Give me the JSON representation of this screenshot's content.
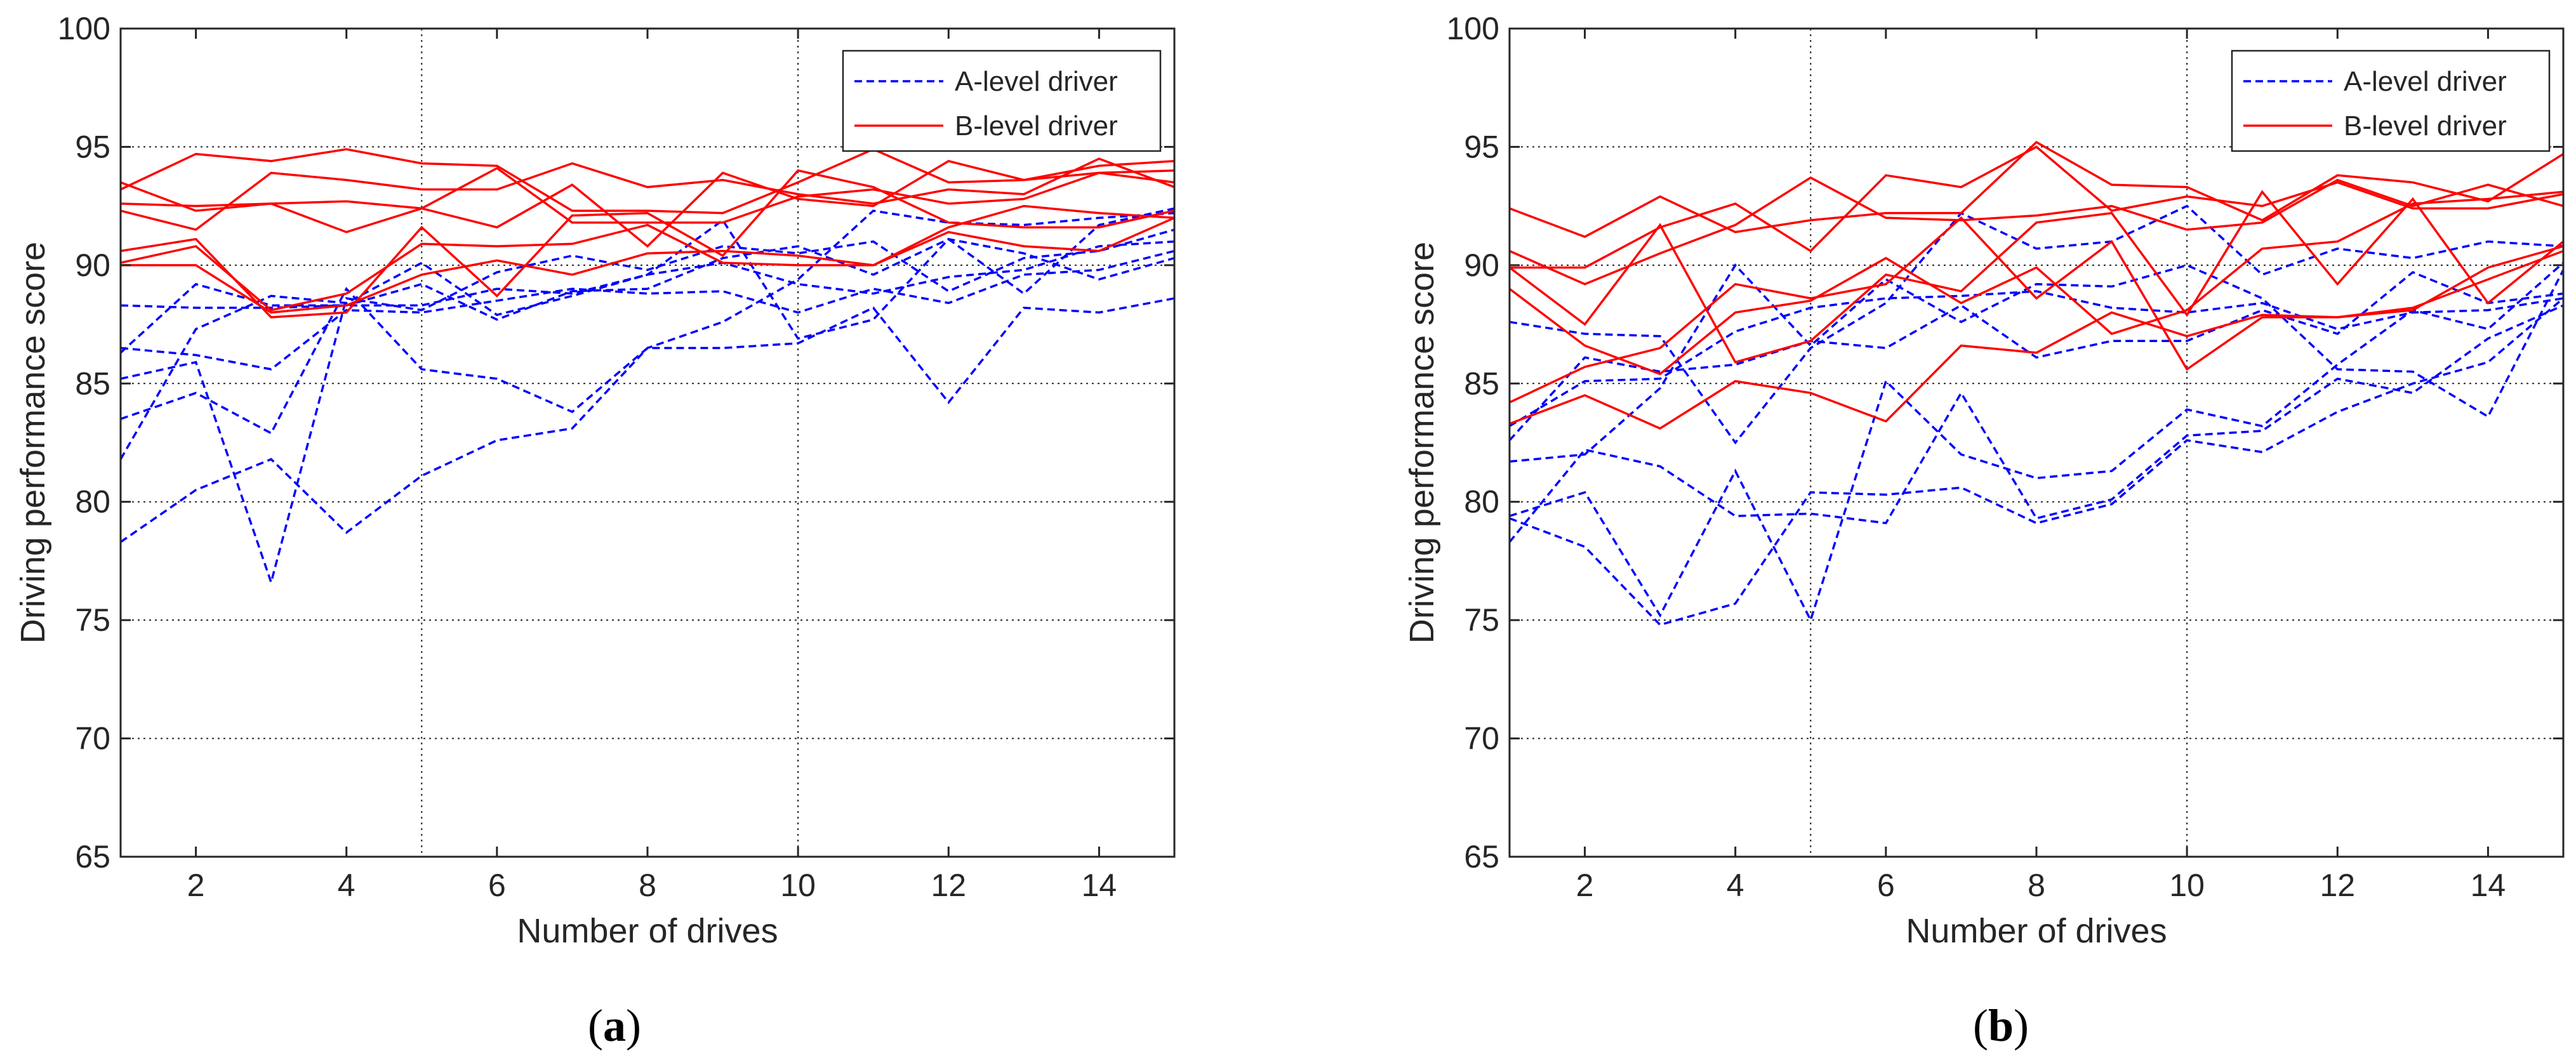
{
  "chart_data": [
    {
      "type": "line",
      "panel_label": "a",
      "xlabel": "Number of drives",
      "ylabel": "Driving performance score",
      "xlim": [
        1,
        15
      ],
      "ylim": [
        65,
        100
      ],
      "xticks": [
        2,
        4,
        6,
        8,
        10,
        12,
        14
      ],
      "yticks": [
        65,
        70,
        75,
        80,
        85,
        90,
        95,
        100
      ],
      "grid_x": [
        5,
        10
      ],
      "grid": true,
      "legend": {
        "position": "top-right",
        "entries": [
          "A-level driver",
          "B-level driver"
        ]
      },
      "x": [
        1,
        2,
        3,
        4,
        5,
        6,
        7,
        8,
        9,
        10,
        11,
        12,
        13,
        14,
        15
      ],
      "series": [
        {
          "name": "A-level driver",
          "group": "A",
          "values": [
            88.3,
            88.2,
            88.2,
            88.3,
            88.3,
            89.0,
            88.8,
            89.6,
            90.1,
            89.2,
            88.8,
            89.5,
            89.8,
            90.8,
            91.0
          ]
        },
        {
          "name": "A-level driver",
          "group": "A",
          "values": [
            86.5,
            86.2,
            85.6,
            88.1,
            88.0,
            88.5,
            89.0,
            88.8,
            88.9,
            88.0,
            89.0,
            88.4,
            89.6,
            89.8,
            90.6
          ]
        },
        {
          "name": "A-level driver",
          "group": "A",
          "values": [
            86.3,
            89.2,
            88.3,
            88.3,
            89.2,
            87.7,
            88.9,
            89.0,
            90.3,
            90.8,
            89.6,
            91.1,
            90.5,
            89.4,
            90.3
          ]
        },
        {
          "name": "A-level driver",
          "group": "A",
          "values": [
            83.5,
            84.6,
            82.9,
            89.0,
            85.6,
            85.2,
            83.8,
            86.5,
            86.5,
            86.7,
            88.2,
            84.2,
            88.2,
            88.0,
            88.6
          ]
        },
        {
          "name": "A-level driver",
          "group": "A",
          "values": [
            81.8,
            87.3,
            88.7,
            88.4,
            90.1,
            87.9,
            88.7,
            89.6,
            91.9,
            86.9,
            87.7,
            91.1,
            88.8,
            91.7,
            92.4
          ]
        },
        {
          "name": "A-level driver",
          "group": "A",
          "values": [
            78.3,
            80.5,
            81.8,
            78.7,
            81.1,
            82.6,
            83.1,
            86.5,
            87.6,
            89.4,
            92.3,
            91.8,
            91.7,
            92.0,
            92.2
          ]
        },
        {
          "name": "A-level driver",
          "group": "A",
          "values": [
            85.2,
            85.9,
            76.6,
            88.6,
            88.1,
            89.7,
            90.4,
            89.8,
            90.8,
            90.5,
            91.0,
            88.9,
            90.3,
            90.6,
            91.5
          ]
        },
        {
          "name": "B-level driver",
          "group": "B",
          "values": [
            93.2,
            94.7,
            94.4,
            94.9,
            94.3,
            94.2,
            92.3,
            92.3,
            92.2,
            93.5,
            94.9,
            93.5,
            93.6,
            93.9,
            94.0
          ]
        },
        {
          "name": "B-level driver",
          "group": "B",
          "values": [
            92.3,
            91.5,
            93.9,
            93.6,
            93.2,
            93.2,
            94.3,
            93.3,
            93.6,
            93.0,
            92.6,
            93.2,
            93.0,
            94.5,
            93.3
          ]
        },
        {
          "name": "B-level driver",
          "group": "B",
          "values": [
            93.5,
            92.3,
            92.6,
            92.7,
            92.4,
            94.1,
            91.8,
            91.8,
            91.8,
            92.9,
            93.2,
            92.6,
            92.8,
            93.9,
            93.5
          ]
        },
        {
          "name": "B-level driver",
          "group": "B",
          "values": [
            92.6,
            92.5,
            92.6,
            91.4,
            92.4,
            91.6,
            93.4,
            90.8,
            93.9,
            92.8,
            92.5,
            94.4,
            93.6,
            94.2,
            94.4
          ]
        },
        {
          "name": "B-level driver",
          "group": "B",
          "values": [
            90.6,
            91.1,
            87.8,
            88.0,
            91.6,
            88.7,
            92.1,
            92.2,
            90.4,
            94.0,
            93.3,
            91.8,
            91.6,
            91.6,
            92.3
          ]
        },
        {
          "name": "B-level driver",
          "group": "B",
          "values": [
            90.1,
            90.8,
            88.1,
            88.8,
            90.9,
            90.8,
            90.9,
            91.7,
            90.1,
            90.0,
            90.0,
            91.4,
            90.8,
            90.6,
            92.0
          ]
        },
        {
          "name": "B-level driver",
          "group": "B",
          "values": [
            90.0,
            90.0,
            88.0,
            88.3,
            89.6,
            90.2,
            89.6,
            90.5,
            90.6,
            90.4,
            90.0,
            91.6,
            92.5,
            92.2,
            92.0
          ]
        }
      ]
    },
    {
      "type": "line",
      "panel_label": "b",
      "xlabel": "Number of drives",
      "ylabel": "Driving performance score",
      "xlim": [
        1,
        15
      ],
      "ylim": [
        65,
        100
      ],
      "xticks": [
        2,
        4,
        6,
        8,
        10,
        12,
        14
      ],
      "yticks": [
        65,
        70,
        75,
        80,
        85,
        90,
        95,
        100
      ],
      "grid_x": [
        5,
        10
      ],
      "grid": true,
      "legend": {
        "position": "top-right",
        "entries": [
          "A-level driver",
          "B-level driver"
        ]
      },
      "x": [
        1,
        2,
        3,
        4,
        5,
        6,
        7,
        8,
        9,
        10,
        11,
        12,
        13,
        14,
        15
      ],
      "series": [
        {
          "name": "A-level driver",
          "group": "A",
          "values": [
            87.6,
            87.1,
            87.0,
            82.5,
            86.5,
            88.4,
            92.2,
            90.7,
            91.0,
            92.5,
            89.6,
            90.7,
            90.3,
            91.0,
            90.8
          ]
        },
        {
          "name": "A-level driver",
          "group": "A",
          "values": [
            82.6,
            86.1,
            85.5,
            85.8,
            86.8,
            86.5,
            88.3,
            86.1,
            86.8,
            86.8,
            88.1,
            87.1,
            89.7,
            88.4,
            88.8
          ]
        },
        {
          "name": "A-level driver",
          "group": "A",
          "values": [
            81.7,
            82.0,
            84.8,
            90.0,
            86.6,
            89.4,
            87.6,
            89.2,
            89.1,
            90.0,
            88.6,
            85.6,
            85.5,
            83.6,
            89.8
          ]
        },
        {
          "name": "A-level driver",
          "group": "A",
          "values": [
            79.4,
            80.4,
            75.2,
            81.3,
            75.0,
            85.1,
            82.0,
            81.0,
            81.3,
            83.9,
            83.2,
            85.8,
            88.1,
            87.3,
            90.1
          ]
        },
        {
          "name": "A-level driver",
          "group": "A",
          "values": [
            78.3,
            82.2,
            81.5,
            79.4,
            79.5,
            79.1,
            84.6,
            79.3,
            80.1,
            82.8,
            83.0,
            85.2,
            84.6,
            86.9,
            88.3
          ]
        },
        {
          "name": "A-level driver",
          "group": "A",
          "values": [
            79.3,
            78.1,
            74.8,
            75.7,
            80.4,
            80.3,
            80.6,
            79.1,
            79.9,
            82.6,
            82.1,
            83.8,
            85.0,
            85.9,
            88.6
          ]
        },
        {
          "name": "A-level driver",
          "group": "A",
          "values": [
            83.2,
            85.1,
            85.2,
            87.2,
            88.2,
            88.6,
            88.7,
            88.9,
            88.2,
            88.0,
            88.4,
            87.3,
            88.0,
            88.1,
            88.6
          ]
        },
        {
          "name": "B-level driver",
          "group": "B",
          "values": [
            92.4,
            91.2,
            92.9,
            91.4,
            91.9,
            92.2,
            92.2,
            95.2,
            93.4,
            93.3,
            91.9,
            93.8,
            93.5,
            92.7,
            94.7
          ]
        },
        {
          "name": "B-level driver",
          "group": "B",
          "values": [
            89.9,
            89.9,
            91.6,
            92.6,
            90.6,
            93.8,
            93.3,
            95.0,
            92.3,
            92.9,
            92.5,
            93.5,
            92.4,
            92.4,
            93.0
          ]
        },
        {
          "name": "B-level driver",
          "group": "B",
          "values": [
            90.6,
            89.2,
            90.5,
            91.7,
            93.7,
            92.0,
            91.9,
            92.1,
            92.5,
            91.5,
            91.8,
            93.6,
            92.5,
            93.4,
            92.5
          ]
        },
        {
          "name": "B-level driver",
          "group": "B",
          "values": [
            89.9,
            87.5,
            91.7,
            85.9,
            86.8,
            89.6,
            88.9,
            91.8,
            92.2,
            87.9,
            93.1,
            89.2,
            92.8,
            88.4,
            91.0
          ]
        },
        {
          "name": "B-level driver",
          "group": "B",
          "values": [
            89.0,
            86.6,
            85.4,
            88.0,
            88.5,
            90.3,
            88.4,
            89.9,
            87.1,
            88.1,
            90.7,
            91.0,
            92.6,
            92.8,
            93.1
          ]
        },
        {
          "name": "B-level driver",
          "group": "B",
          "values": [
            84.2,
            85.7,
            86.5,
            89.2,
            88.6,
            89.2,
            92.0,
            88.6,
            91.0,
            85.6,
            87.8,
            87.8,
            88.1,
            89.9,
            90.8
          ]
        },
        {
          "name": "B-level driver",
          "group": "B",
          "values": [
            83.3,
            84.5,
            83.1,
            85.1,
            84.6,
            83.4,
            86.6,
            86.3,
            88.0,
            87.0,
            87.9,
            87.8,
            88.2,
            89.4,
            90.6
          ]
        }
      ]
    }
  ],
  "colors": {
    "a_level": "#0000ff",
    "b_level": "#ff0000",
    "grid": "#262626",
    "axis": "#262626"
  },
  "captions": [
    {
      "open": "(",
      "letter": "a",
      "close": ")"
    },
    {
      "open": "(",
      "letter": "b",
      "close": ")"
    }
  ]
}
